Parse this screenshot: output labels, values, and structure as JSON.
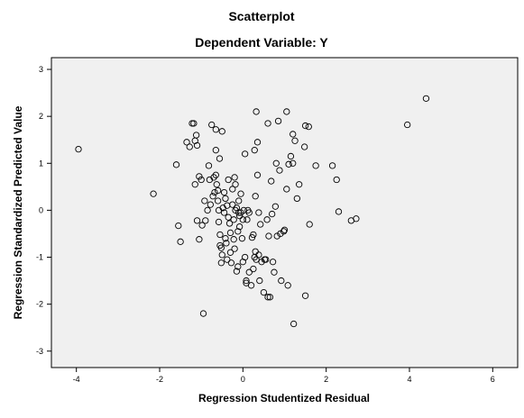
{
  "chart_data": {
    "type": "scatter",
    "title": "Scatterplot",
    "subtitle": "Dependent Variable: Y",
    "xlabel": "Regression Studentized Residual",
    "ylabel": "Regression Standardized Predicted Value",
    "xlim": [
      -4.6,
      6.6
    ],
    "ylim": [
      -3.35,
      3.25
    ],
    "xticks": [
      -4,
      -2,
      0,
      2,
      4,
      6
    ],
    "yticks": [
      -3,
      -2,
      -1,
      0,
      1,
      2,
      3
    ],
    "grid": false,
    "plot_background": "#f0f0f0",
    "marker": "open-circle",
    "marker_color": "#000000",
    "points": [
      [
        -3.95,
        1.3
      ],
      [
        -2.15,
        0.35
      ],
      [
        -1.6,
        0.97
      ],
      [
        -1.55,
        -0.33
      ],
      [
        -1.5,
        -0.67
      ],
      [
        -1.35,
        1.45
      ],
      [
        -1.28,
        1.35
      ],
      [
        -1.22,
        1.85
      ],
      [
        -1.18,
        1.85
      ],
      [
        -1.15,
        1.48
      ],
      [
        -1.12,
        1.6
      ],
      [
        -1.1,
        1.38
      ],
      [
        -1.15,
        0.55
      ],
      [
        -1.05,
        0.72
      ],
      [
        -1.0,
        0.65
      ],
      [
        -1.1,
        -0.22
      ],
      [
        -1.05,
        -0.62
      ],
      [
        -0.98,
        -0.32
      ],
      [
        -0.95,
        -2.2
      ],
      [
        -0.92,
        0.2
      ],
      [
        -0.9,
        -0.22
      ],
      [
        -0.85,
        0.0
      ],
      [
        -0.82,
        0.95
      ],
      [
        -0.8,
        0.65
      ],
      [
        -0.78,
        0.12
      ],
      [
        -0.75,
        1.82
      ],
      [
        -0.72,
        0.3
      ],
      [
        -0.7,
        0.7
      ],
      [
        -0.68,
        0.38
      ],
      [
        -0.65,
        1.72
      ],
      [
        -0.65,
        1.28
      ],
      [
        -0.65,
        0.75
      ],
      [
        -0.63,
        0.55
      ],
      [
        -0.6,
        0.42
      ],
      [
        -0.6,
        0.2
      ],
      [
        -0.58,
        0.0
      ],
      [
        -0.58,
        -0.25
      ],
      [
        -0.56,
        1.1
      ],
      [
        -0.55,
        -0.52
      ],
      [
        -0.55,
        -0.75
      ],
      [
        -0.52,
        -0.8
      ],
      [
        -0.52,
        -1.12
      ],
      [
        -0.5,
        -0.95
      ],
      [
        -0.5,
        1.68
      ],
      [
        -0.48,
        0.05
      ],
      [
        -0.45,
        -0.05
      ],
      [
        -0.45,
        0.38
      ],
      [
        -0.42,
        -0.6
      ],
      [
        -0.42,
        0.25
      ],
      [
        -0.4,
        -0.7
      ],
      [
        -0.38,
        0.1
      ],
      [
        -0.38,
        -1.05
      ],
      [
        -0.35,
        -0.15
      ],
      [
        -0.35,
        0.65
      ],
      [
        -0.32,
        -0.28
      ],
      [
        -0.3,
        -0.48
      ],
      [
        -0.3,
        -0.9
      ],
      [
        -0.28,
        -1.12
      ],
      [
        -0.25,
        0.45
      ],
      [
        -0.25,
        0.12
      ],
      [
        -0.22,
        -0.2
      ],
      [
        -0.22,
        -0.62
      ],
      [
        -0.2,
        -0.82
      ],
      [
        -0.2,
        0.7
      ],
      [
        -0.18,
        0.55
      ],
      [
        -0.18,
        0.0
      ],
      [
        -0.15,
        -1.3
      ],
      [
        -0.15,
        0.05
      ],
      [
        -0.12,
        -0.45
      ],
      [
        -0.12,
        -1.2
      ],
      [
        -0.1,
        0.2
      ],
      [
        -0.1,
        -0.05
      ],
      [
        -0.08,
        -0.12
      ],
      [
        -0.08,
        -0.35
      ],
      [
        -0.05,
        -0.05
      ],
      [
        -0.05,
        0.35
      ],
      [
        -0.02,
        -0.6
      ],
      [
        0.0,
        -0.2
      ],
      [
        0.0,
        -1.1
      ],
      [
        0.02,
        0.0
      ],
      [
        0.05,
        -1.0
      ],
      [
        0.05,
        1.2
      ],
      [
        0.08,
        -1.5
      ],
      [
        0.08,
        -1.55
      ],
      [
        0.1,
        -0.2
      ],
      [
        0.12,
        0.0
      ],
      [
        0.15,
        -0.05
      ],
      [
        0.15,
        -1.32
      ],
      [
        0.2,
        -1.6
      ],
      [
        0.22,
        -0.58
      ],
      [
        0.25,
        -0.52
      ],
      [
        0.25,
        -1.25
      ],
      [
        0.28,
        1.28
      ],
      [
        0.28,
        -1.0
      ],
      [
        0.3,
        -0.88
      ],
      [
        0.3,
        0.3
      ],
      [
        0.32,
        2.1
      ],
      [
        0.32,
        -1.05
      ],
      [
        0.35,
        0.75
      ],
      [
        0.35,
        1.45
      ],
      [
        0.38,
        -0.05
      ],
      [
        0.38,
        -0.95
      ],
      [
        0.4,
        -1.5
      ],
      [
        0.42,
        -0.3
      ],
      [
        0.45,
        -1.1
      ],
      [
        0.5,
        -1.75
      ],
      [
        0.52,
        -1.05
      ],
      [
        0.55,
        -1.05
      ],
      [
        0.58,
        -0.2
      ],
      [
        0.6,
        1.85
      ],
      [
        0.6,
        -1.85
      ],
      [
        0.62,
        -0.55
      ],
      [
        0.65,
        -1.85
      ],
      [
        0.68,
        0.62
      ],
      [
        0.7,
        -0.08
      ],
      [
        0.72,
        -1.1
      ],
      [
        0.75,
        -1.32
      ],
      [
        0.78,
        0.08
      ],
      [
        0.8,
        1.0
      ],
      [
        0.82,
        -0.55
      ],
      [
        0.85,
        1.9
      ],
      [
        0.88,
        0.85
      ],
      [
        0.9,
        -0.5
      ],
      [
        0.92,
        -1.5
      ],
      [
        0.98,
        -0.45
      ],
      [
        1.0,
        -0.42
      ],
      [
        1.05,
        2.1
      ],
      [
        1.05,
        0.45
      ],
      [
        1.08,
        -1.6
      ],
      [
        1.1,
        0.98
      ],
      [
        1.15,
        1.15
      ],
      [
        1.2,
        1.0
      ],
      [
        1.2,
        1.62
      ],
      [
        1.22,
        -2.42
      ],
      [
        1.25,
        1.48
      ],
      [
        1.3,
        0.25
      ],
      [
        1.35,
        0.55
      ],
      [
        1.48,
        1.35
      ],
      [
        1.5,
        1.8
      ],
      [
        1.5,
        -1.82
      ],
      [
        1.58,
        1.78
      ],
      [
        1.6,
        -0.3
      ],
      [
        1.75,
        0.95
      ],
      [
        2.15,
        0.95
      ],
      [
        2.25,
        0.65
      ],
      [
        2.3,
        -0.03
      ],
      [
        2.6,
        -0.22
      ],
      [
        2.72,
        -0.18
      ],
      [
        3.95,
        1.82
      ],
      [
        4.4,
        2.38
      ]
    ]
  }
}
